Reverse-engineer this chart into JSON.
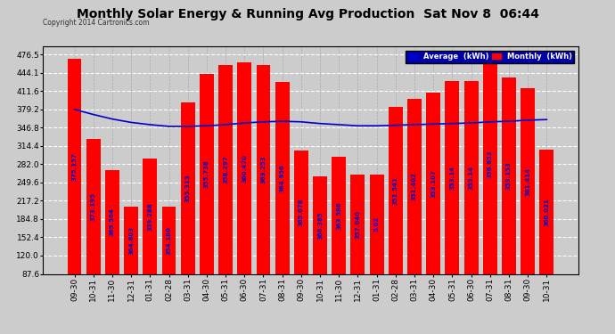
{
  "title": "Monthly Solar Energy & Running Avg Production  Sat Nov 8  06:44",
  "copyright": "Copyright 2014 Cartronics.com",
  "categories": [
    "09-30",
    "10-31",
    "11-30",
    "12-31",
    "01-31",
    "02-28",
    "03-31",
    "04-30",
    "05-31",
    "06-30",
    "07-31",
    "08-31",
    "09-30",
    "10-31",
    "11-30",
    "12-31",
    "01-31",
    "02-28",
    "03-31",
    "04-30",
    "05-31",
    "06-30",
    "07-31",
    "08-31",
    "09-30",
    "10-31"
  ],
  "bar_tops": [
    468,
    327,
    272,
    207,
    292,
    207,
    392,
    442,
    458,
    463,
    458,
    428,
    306,
    260,
    295,
    263,
    263,
    384,
    398,
    408,
    430,
    430,
    478,
    436,
    416,
    308
  ],
  "bar_labels": [
    "375.157",
    "373.195",
    "369.564",
    "364.803",
    "359.288",
    "354.180",
    "355.315",
    "355.738",
    "358.297",
    "360.470",
    "363.253",
    "364.956",
    "365.678",
    "366.385",
    "363.586",
    "357.040",
    "5.02",
    "351.541",
    "351.402",
    "353.107",
    "353.14",
    "355.14",
    "356.653",
    "359.153",
    "361.414",
    "360.021"
  ],
  "avg_values": [
    379,
    370,
    362,
    356,
    352,
    349,
    349,
    350,
    352,
    355,
    357,
    358,
    357,
    354,
    352,
    350,
    350,
    351,
    352,
    353,
    354,
    355,
    357,
    358,
    360,
    361
  ],
  "bar_color": "#ff0000",
  "avg_color": "#0000cc",
  "bar_label_color": "#0000cc",
  "special_index": 16,
  "special_label_color": "#0000ff",
  "background_color": "#cccccc",
  "plot_bg_color": "#cccccc",
  "title_color": "#000000",
  "legend_bg_color": "#0000aa",
  "ytick_values": [
    87.6,
    120.0,
    152.4,
    184.8,
    217.2,
    249.6,
    282.0,
    314.4,
    346.8,
    379.2,
    411.6,
    444.1,
    476.5
  ],
  "ylim_low": 87.6,
  "ylim_high": 490,
  "title_fontsize": 10,
  "label_fontsize": 5.0,
  "tick_fontsize": 6.5
}
